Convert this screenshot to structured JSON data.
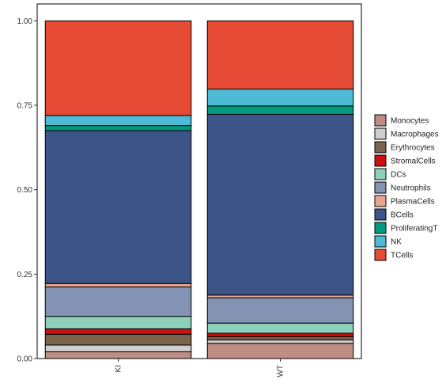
{
  "chart_data": {
    "type": "bar",
    "stacked": true,
    "categories": [
      "KI",
      "WT"
    ],
    "ylim": [
      0,
      1.05
    ],
    "yticks": [
      "0.00",
      "0.25",
      "0.50",
      "0.75",
      "1.00"
    ],
    "legend_position": "right",
    "grid": false,
    "series": [
      {
        "name": "Monocytes",
        "color": "#BF8D83",
        "values": [
          0.02,
          0.045
        ]
      },
      {
        "name": "Macrophages",
        "color": "#CFCFCF",
        "values": [
          0.02,
          0.01
        ]
      },
      {
        "name": "Erythrocytes",
        "color": "#7B644E",
        "values": [
          0.032,
          0.01
        ]
      },
      {
        "name": "StromalCells",
        "color": "#CC1010",
        "values": [
          0.016,
          0.01
        ]
      },
      {
        "name": "DCs",
        "color": "#8FD0BA",
        "values": [
          0.037,
          0.03
        ]
      },
      {
        "name": "Neutrophils",
        "color": "#8492B4",
        "values": [
          0.087,
          0.075
        ]
      },
      {
        "name": "PlasmaCells",
        "color": "#EAA591",
        "values": [
          0.01,
          0.008
        ]
      },
      {
        "name": "BCells",
        "color": "#3C5488",
        "values": [
          0.453,
          0.535
        ]
      },
      {
        "name": "ProliferatingT",
        "color": "#039980",
        "values": [
          0.015,
          0.025
        ]
      },
      {
        "name": "NK",
        "color": "#4DBBD5",
        "values": [
          0.03,
          0.05
        ]
      },
      {
        "name": "TCells",
        "color": "#E64B35",
        "values": [
          0.28,
          0.202
        ]
      }
    ]
  }
}
